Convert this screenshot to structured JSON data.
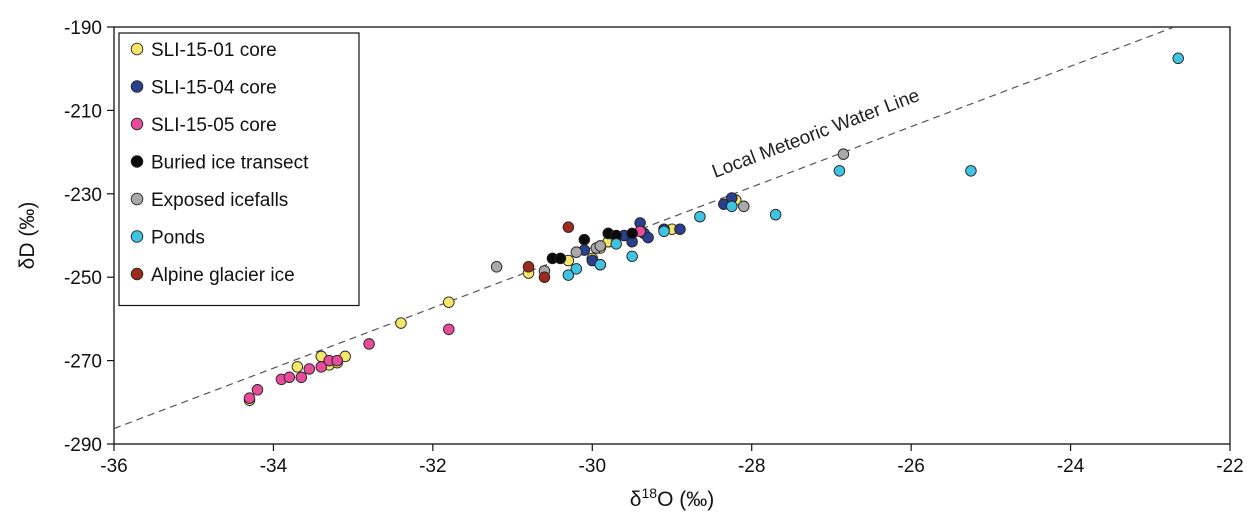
{
  "chart_data": {
    "type": "scatter",
    "xlabel_main": "δ",
    "xlabel_sup": "18",
    "xlabel_rest": "O (‰)",
    "ylabel": "δD (‰)",
    "xlim": [
      -36,
      -22
    ],
    "ylim": [
      -290,
      -190
    ],
    "xticks": [
      "-36",
      "-34",
      "-32",
      "-30",
      "-28",
      "-26",
      "-24",
      "-22"
    ],
    "yticks": [
      "-190",
      "-210",
      "-230",
      "-250",
      "-270",
      "-290"
    ],
    "legend_position": "top-left",
    "annotation": "Local Meteoric Water Line",
    "lmwl": {
      "x": [
        -36,
        -22.7
      ],
      "y": [
        -286.3,
        -190
      ]
    },
    "series": [
      {
        "name": "SLI-15-01 core",
        "color": "#f5e66a",
        "points": [
          [
            -34.3,
            -279.5
          ],
          [
            -33.7,
            -271.5
          ],
          [
            -33.4,
            -269
          ],
          [
            -33.3,
            -271
          ],
          [
            -33.2,
            -270.5
          ],
          [
            -33.1,
            -269
          ],
          [
            -32.4,
            -261
          ],
          [
            -31.8,
            -256
          ],
          [
            -30.8,
            -249
          ],
          [
            -30.3,
            -246
          ],
          [
            -30.0,
            -245.5
          ],
          [
            -29.9,
            -243
          ],
          [
            -29.8,
            -241.5
          ],
          [
            -29.7,
            -240.5
          ],
          [
            -29.0,
            -238.5
          ],
          [
            -28.2,
            -231.5
          ]
        ]
      },
      {
        "name": "SLI-15-04 core",
        "color": "#2b3f8f",
        "points": [
          [
            -30.1,
            -243.5
          ],
          [
            -30.0,
            -246
          ],
          [
            -29.8,
            -239.5
          ],
          [
            -29.6,
            -240
          ],
          [
            -29.5,
            -241.5
          ],
          [
            -29.4,
            -237
          ],
          [
            -29.35,
            -239.5
          ],
          [
            -29.3,
            -240.5
          ],
          [
            -29.1,
            -238.5
          ],
          [
            -28.9,
            -238.5
          ],
          [
            -28.35,
            -232.5
          ],
          [
            -28.25,
            -231
          ]
        ]
      },
      {
        "name": "SLI-15-05 core",
        "color": "#e64c9a",
        "points": [
          [
            -34.3,
            -279
          ],
          [
            -34.2,
            -277
          ],
          [
            -33.9,
            -274.5
          ],
          [
            -33.8,
            -274
          ],
          [
            -33.65,
            -274
          ],
          [
            -33.55,
            -272
          ],
          [
            -33.4,
            -271.5
          ],
          [
            -33.3,
            -270
          ],
          [
            -33.2,
            -270
          ],
          [
            -32.8,
            -266
          ],
          [
            -31.8,
            -262.5
          ],
          [
            -29.4,
            -239
          ]
        ]
      },
      {
        "name": "Buried ice transect",
        "color": "#0a0a0a",
        "points": [
          [
            -30.5,
            -245.5
          ],
          [
            -30.4,
            -245.5
          ],
          [
            -30.1,
            -241
          ],
          [
            -29.9,
            -247
          ],
          [
            -29.8,
            -239.5
          ],
          [
            -29.7,
            -240
          ],
          [
            -29.5,
            -239.5
          ]
        ]
      },
      {
        "name": "Exposed icefalls",
        "color": "#a9a9a9",
        "points": [
          [
            -31.2,
            -247.5
          ],
          [
            -30.6,
            -248.5
          ],
          [
            -30.2,
            -244
          ],
          [
            -29.95,
            -243
          ],
          [
            -29.9,
            -242.5
          ],
          [
            -28.1,
            -233
          ],
          [
            -26.85,
            -220.5
          ]
        ]
      },
      {
        "name": "Ponds",
        "color": "#3fc3e0",
        "points": [
          [
            -30.3,
            -249.5
          ],
          [
            -30.2,
            -248
          ],
          [
            -29.9,
            -247
          ],
          [
            -29.7,
            -242
          ],
          [
            -29.5,
            -245
          ],
          [
            -29.1,
            -239
          ],
          [
            -28.65,
            -235.5
          ],
          [
            -28.25,
            -233
          ],
          [
            -27.7,
            -235
          ],
          [
            -26.9,
            -224.5
          ],
          [
            -25.25,
            -224.5
          ],
          [
            -22.65,
            -197.5
          ]
        ]
      },
      {
        "name": "Alpine glacier ice",
        "color": "#9e2a1f",
        "points": [
          [
            -30.8,
            -247.5
          ],
          [
            -30.6,
            -250
          ],
          [
            -30.3,
            -238
          ]
        ]
      }
    ]
  }
}
